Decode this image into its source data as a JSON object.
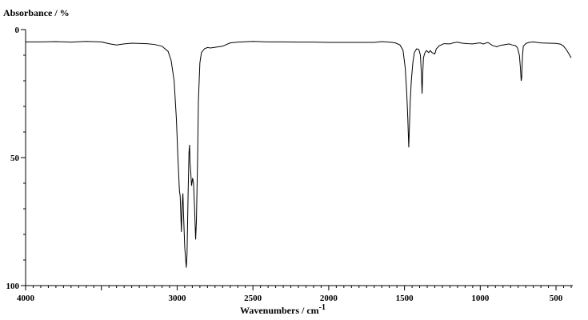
{
  "chart_data": {
    "type": "line",
    "y_axis_title": "Absorbance / %",
    "x_axis_title_main": "Wavenumbers / cm",
    "x_axis_title_exp": "-1",
    "xlim": [
      4000,
      400
    ],
    "ylim": [
      0,
      100
    ],
    "y_inverted": true,
    "grid": false,
    "x_tick_labels": [
      {
        "value": 4000,
        "label": "4000"
      },
      {
        "value": 3000,
        "label": "3000"
      },
      {
        "value": 2500,
        "label": "2500"
      },
      {
        "value": 2000,
        "label": "2000"
      },
      {
        "value": 1500,
        "label": "1500"
      },
      {
        "value": 1000,
        "label": "1000"
      },
      {
        "value": 500,
        "label": "500"
      }
    ],
    "y_tick_labels": [
      {
        "value": 0,
        "label": "0"
      },
      {
        "value": 50,
        "label": "50"
      },
      {
        "value": 100,
        "label": "100"
      }
    ],
    "series": [
      {
        "color": "#000000",
        "points": [
          [
            4000,
            4.8
          ],
          [
            3900,
            4.8
          ],
          [
            3800,
            4.7
          ],
          [
            3700,
            4.9
          ],
          [
            3600,
            4.6
          ],
          [
            3500,
            4.8
          ],
          [
            3450,
            5.5
          ],
          [
            3400,
            6.0
          ],
          [
            3350,
            5.6
          ],
          [
            3300,
            5.3
          ],
          [
            3200,
            5.5
          ],
          [
            3150,
            5.8
          ],
          [
            3100,
            6.5
          ],
          [
            3060,
            8.5
          ],
          [
            3040,
            12
          ],
          [
            3020,
            20
          ],
          [
            3005,
            35
          ],
          [
            2995,
            50
          ],
          [
            2985,
            63
          ],
          [
            2980,
            65
          ],
          [
            2972,
            79
          ],
          [
            2968,
            70
          ],
          [
            2962,
            64
          ],
          [
            2958,
            72
          ],
          [
            2950,
            85
          ],
          [
            2940,
            93
          ],
          [
            2935,
            88
          ],
          [
            2928,
            65
          ],
          [
            2922,
            48
          ],
          [
            2918,
            45
          ],
          [
            2915,
            52
          ],
          [
            2910,
            56
          ],
          [
            2905,
            61
          ],
          [
            2898,
            58
          ],
          [
            2892,
            60
          ],
          [
            2885,
            70
          ],
          [
            2878,
            82
          ],
          [
            2873,
            75
          ],
          [
            2865,
            50
          ],
          [
            2860,
            28
          ],
          [
            2850,
            13
          ],
          [
            2840,
            9
          ],
          [
            2820,
            7.5
          ],
          [
            2800,
            7.0
          ],
          [
            2780,
            7.2
          ],
          [
            2760,
            7.0
          ],
          [
            2700,
            6.5
          ],
          [
            2650,
            5.2
          ],
          [
            2600,
            4.9
          ],
          [
            2500,
            4.6
          ],
          [
            2400,
            4.8
          ],
          [
            2300,
            4.8
          ],
          [
            2200,
            4.9
          ],
          [
            2100,
            4.9
          ],
          [
            2000,
            5.0
          ],
          [
            1900,
            5.0
          ],
          [
            1800,
            5.0
          ],
          [
            1700,
            5.0
          ],
          [
            1650,
            4.7
          ],
          [
            1600,
            4.9
          ],
          [
            1560,
            5.2
          ],
          [
            1530,
            6.0
          ],
          [
            1510,
            8
          ],
          [
            1495,
            15
          ],
          [
            1485,
            25
          ],
          [
            1478,
            35
          ],
          [
            1472,
            46
          ],
          [
            1468,
            39
          ],
          [
            1462,
            28
          ],
          [
            1455,
            20
          ],
          [
            1445,
            13
          ],
          [
            1435,
            9
          ],
          [
            1420,
            7.5
          ],
          [
            1405,
            7.8
          ],
          [
            1395,
            10
          ],
          [
            1388,
            18
          ],
          [
            1384,
            25
          ],
          [
            1380,
            18
          ],
          [
            1375,
            11
          ],
          [
            1365,
            9
          ],
          [
            1355,
            8.2
          ],
          [
            1340,
            9
          ],
          [
            1330,
            8.2
          ],
          [
            1318,
            9
          ],
          [
            1300,
            9.5
          ],
          [
            1290,
            7.5
          ],
          [
            1270,
            6.3
          ],
          [
            1240,
            5.5
          ],
          [
            1200,
            5.6
          ],
          [
            1180,
            5.2
          ],
          [
            1150,
            4.9
          ],
          [
            1120,
            5.3
          ],
          [
            1080,
            5.5
          ],
          [
            1050,
            5.6
          ],
          [
            1020,
            5.3
          ],
          [
            1000,
            5.2
          ],
          [
            980,
            5.6
          ],
          [
            950,
            5.0
          ],
          [
            920,
            6.2
          ],
          [
            890,
            6.7
          ],
          [
            870,
            6.2
          ],
          [
            840,
            5.9
          ],
          [
            810,
            5.6
          ],
          [
            790,
            6.0
          ],
          [
            770,
            6.2
          ],
          [
            755,
            7.0
          ],
          [
            742,
            10
          ],
          [
            735,
            15
          ],
          [
            730,
            20
          ],
          [
            727,
            19
          ],
          [
            722,
            11
          ],
          [
            716,
            6.5
          ],
          [
            700,
            5.5
          ],
          [
            680,
            5.0
          ],
          [
            650,
            4.8
          ],
          [
            600,
            5.2
          ],
          [
            550,
            5.3
          ],
          [
            500,
            5.4
          ],
          [
            470,
            5.7
          ],
          [
            450,
            6.5
          ],
          [
            430,
            8.0
          ],
          [
            415,
            9.5
          ],
          [
            400,
            11
          ]
        ]
      }
    ]
  }
}
